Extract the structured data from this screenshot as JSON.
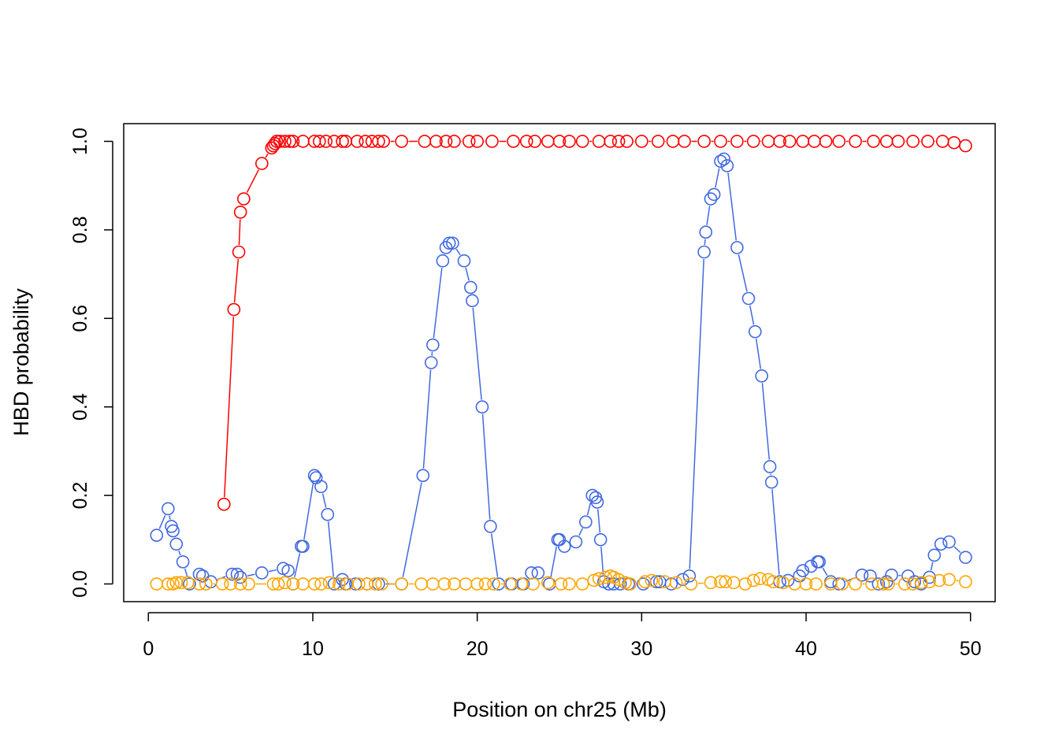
{
  "chart_data": {
    "type": "line",
    "title": "",
    "xlabel": "Position on chr25 (Mb)",
    "ylabel": "HBD probability",
    "xlim": [
      -1.5,
      51.5
    ],
    "ylim": [
      -0.04,
      1.04
    ],
    "x_ticks": [
      0,
      10,
      20,
      30,
      40,
      50
    ],
    "x_tick_labels": [
      "0",
      "10",
      "20",
      "30",
      "40",
      "50"
    ],
    "y_ticks": [
      0.0,
      0.2,
      0.4,
      0.6,
      0.8,
      1.0
    ],
    "y_tick_labels": [
      "0.0",
      "0.2",
      "0.4",
      "0.6",
      "0.8",
      "1.0"
    ],
    "grid": false,
    "legend": "none",
    "marker": "open-circle",
    "series": [
      {
        "color": "#ff0000",
        "x": [
          4.6,
          5.2,
          5.5,
          5.6,
          5.8,
          6.9,
          7.5,
          7.6,
          7.7,
          7.8,
          8.0,
          8.3,
          8.6,
          8.8,
          9.4,
          10.1,
          10.4,
          10.8,
          11.3,
          11.8,
          12.0,
          12.7,
          13.2,
          13.6,
          14.0,
          14.3,
          15.4,
          16.8,
          17.5,
          18.1,
          18.6,
          19.5,
          20.0,
          20.9,
          22.2,
          23.0,
          23.5,
          24.3,
          25.0,
          25.6,
          26.4,
          27.4,
          28.1,
          28.6,
          29.1,
          30.0,
          31.0,
          31.9,
          32.6,
          33.8,
          34.8,
          35.8,
          36.8,
          37.7,
          38.4,
          39.0,
          39.8,
          40.5,
          41.2,
          42.0,
          43.0,
          44.1,
          44.9,
          45.6,
          46.5,
          47.4,
          48.3,
          49.0,
          49.7
        ],
        "y": [
          0.18,
          0.62,
          0.75,
          0.84,
          0.87,
          0.95,
          0.985,
          0.99,
          0.995,
          1.0,
          1.0,
          1.0,
          1.0,
          1.0,
          1.0,
          1.0,
          1.0,
          1.0,
          1.0,
          1.0,
          1.0,
          1.0,
          1.0,
          1.0,
          1.0,
          1.0,
          1.0,
          1.0,
          1.0,
          1.0,
          1.0,
          1.0,
          1.0,
          1.0,
          1.0,
          1.0,
          1.0,
          1.0,
          1.0,
          1.0,
          1.0,
          1.0,
          1.0,
          1.0,
          1.0,
          1.0,
          1.0,
          1.0,
          1.0,
          1.0,
          1.0,
          1.0,
          1.0,
          1.0,
          1.0,
          1.0,
          1.0,
          1.0,
          1.0,
          1.0,
          1.0,
          1.0,
          1.0,
          1.0,
          1.0,
          1.0,
          1.0,
          0.997,
          0.99
        ]
      },
      {
        "color": "#4169e1",
        "x": [
          0.5,
          1.2,
          1.4,
          1.5,
          1.7,
          2.1,
          2.5,
          3.1,
          3.3,
          3.8,
          5.1,
          5.4,
          5.6,
          6.9,
          8.2,
          8.5,
          8.8,
          9.3,
          9.4,
          10.1,
          10.2,
          10.5,
          10.9,
          11.3,
          11.8,
          12.0,
          12.6,
          13.3,
          14.0,
          15.4,
          16.7,
          17.2,
          17.3,
          17.9,
          18.1,
          18.3,
          18.5,
          19.2,
          19.6,
          19.7,
          20.3,
          20.8,
          21.3,
          22.1,
          22.8,
          23.3,
          23.7,
          24.4,
          24.9,
          25.0,
          25.3,
          26.0,
          26.6,
          27.0,
          27.2,
          27.3,
          27.5,
          27.7,
          28.0,
          28.3,
          28.7,
          29.2,
          30.1,
          30.9,
          31.1,
          31.8,
          32.5,
          32.9,
          33.8,
          33.9,
          34.2,
          34.4,
          34.8,
          35.0,
          35.2,
          35.8,
          36.5,
          36.9,
          37.3,
          37.8,
          37.9,
          38.4,
          38.9,
          39.6,
          39.8,
          40.3,
          40.7,
          40.8,
          41.5,
          42.0,
          43.4,
          43.9,
          44.4,
          44.9,
          45.2,
          46.2,
          46.6,
          47.0,
          47.5,
          47.8,
          48.2,
          48.7,
          49.7
        ],
        "y": [
          0.11,
          0.17,
          0.13,
          0.12,
          0.09,
          0.05,
          0.0,
          0.022,
          0.018,
          0.005,
          0.022,
          0.022,
          0.015,
          0.025,
          0.035,
          0.03,
          0.0,
          0.085,
          0.085,
          0.245,
          0.24,
          0.22,
          0.157,
          0.0,
          0.01,
          0.0,
          0.0,
          0.0,
          0.0,
          0.0,
          0.245,
          0.5,
          0.54,
          0.73,
          0.76,
          0.77,
          0.77,
          0.73,
          0.67,
          0.64,
          0.4,
          0.13,
          0.0,
          0.0,
          0.0,
          0.025,
          0.025,
          0.0,
          0.1,
          0.1,
          0.085,
          0.095,
          0.14,
          0.2,
          0.195,
          0.185,
          0.1,
          0.005,
          0.0,
          0.0,
          0.0,
          0.0,
          0.0,
          0.005,
          0.005,
          0.0,
          0.01,
          0.018,
          0.75,
          0.795,
          0.87,
          0.88,
          0.955,
          0.96,
          0.945,
          0.76,
          0.645,
          0.57,
          0.47,
          0.265,
          0.23,
          0.005,
          0.008,
          0.018,
          0.03,
          0.04,
          0.05,
          0.05,
          0.005,
          0.0,
          0.02,
          0.018,
          0.0,
          0.005,
          0.02,
          0.018,
          0.005,
          0.0,
          0.015,
          0.065,
          0.09,
          0.095,
          0.06
        ]
      },
      {
        "color": "#ffa500",
        "x": [
          0.5,
          1.2,
          1.5,
          1.7,
          2.0,
          2.4,
          3.1,
          3.5,
          4.5,
          5.0,
          5.6,
          6.1,
          7.6,
          7.9,
          8.3,
          8.8,
          9.4,
          10.1,
          10.5,
          11.0,
          11.6,
          12.1,
          12.8,
          13.3,
          13.8,
          14.2,
          15.4,
          16.6,
          17.3,
          18.0,
          18.6,
          19.3,
          20.0,
          20.5,
          21.0,
          22.0,
          22.7,
          23.4,
          24.3,
          25.1,
          25.6,
          26.4,
          27.1,
          27.4,
          27.8,
          28.1,
          28.3,
          28.6,
          29.0,
          29.3,
          30.2,
          30.6,
          31.4,
          32.1,
          33.0,
          34.2,
          34.8,
          35.1,
          35.6,
          36.3,
          36.8,
          37.2,
          37.7,
          38.0,
          38.6,
          39.3,
          40.0,
          40.6,
          41.5,
          42.2,
          43.0,
          44.0,
          44.7,
          45.0,
          46.0,
          46.5,
          47.0,
          47.5,
          48.1,
          48.7,
          49.7
        ],
        "y": [
          0.0,
          0.0,
          0.0,
          0.003,
          0.003,
          0.003,
          0.0,
          0.0,
          0.0,
          0.0,
          0.0,
          0.0,
          0.0,
          0.0,
          0.003,
          0.0,
          0.0,
          0.0,
          0.0,
          0.003,
          0.0,
          0.0,
          0.0,
          0.0,
          0.0,
          0.0,
          0.0,
          0.0,
          0.0,
          0.0,
          0.0,
          0.0,
          0.0,
          0.0,
          0.0,
          0.0,
          0.0,
          0.0,
          0.003,
          0.0,
          0.0,
          0.0,
          0.008,
          0.012,
          0.015,
          0.018,
          0.015,
          0.01,
          0.003,
          0.0,
          0.005,
          0.008,
          0.005,
          0.003,
          0.0,
          0.003,
          0.005,
          0.005,
          0.003,
          0.0,
          0.008,
          0.012,
          0.01,
          0.005,
          0.003,
          0.0,
          0.0,
          0.0,
          0.0,
          0.0,
          0.0,
          0.0,
          0.0,
          0.0,
          0.0,
          0.0,
          0.003,
          0.005,
          0.008,
          0.01,
          0.005
        ]
      }
    ]
  }
}
